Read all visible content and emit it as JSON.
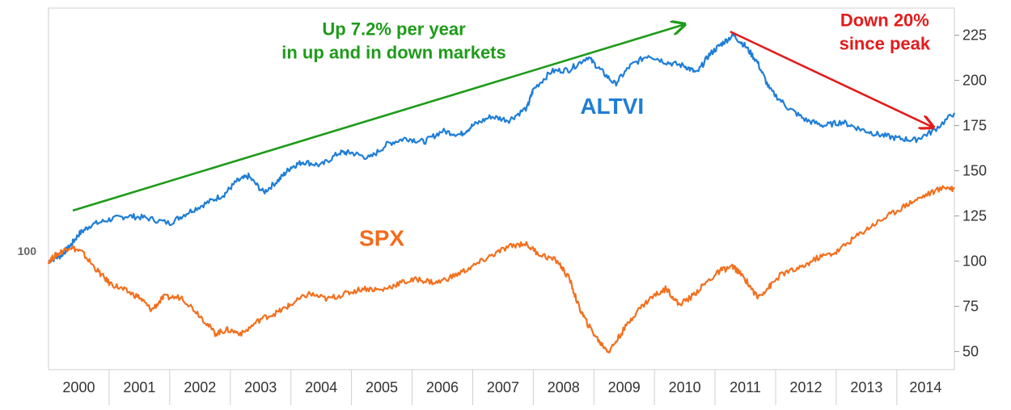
{
  "chart_data": {
    "type": "line",
    "y_axis": {
      "side": "right",
      "ticks": [
        "225",
        "200",
        "175",
        "150",
        "125",
        "100",
        "75",
        "50"
      ],
      "range": [
        40,
        240
      ]
    },
    "left_marker": {
      "label": "100",
      "value": 100
    },
    "x_axis": {
      "tick_labels": [
        "2000",
        "2001",
        "2002",
        "2003",
        "2004",
        "2005",
        "2006",
        "2007",
        "2008",
        "2009",
        "2010",
        "2011",
        "2012",
        "2013",
        "2014"
      ],
      "range": [
        2000.0,
        2014.95
      ]
    },
    "grid": {
      "horizontal": false,
      "vertical": false
    },
    "series": [
      {
        "name": "ALTVI",
        "color": "#1f7ed6",
        "label_color": "#1f7ed6",
        "points": [
          [
            2000.0,
            100
          ],
          [
            2000.2,
            103
          ],
          [
            2000.35,
            108
          ],
          [
            2000.5,
            115
          ],
          [
            2000.7,
            120
          ],
          [
            2001.0,
            123
          ],
          [
            2001.3,
            125
          ],
          [
            2001.6,
            124
          ],
          [
            2002.0,
            121
          ],
          [
            2002.3,
            127
          ],
          [
            2002.6,
            132
          ],
          [
            2002.9,
            137
          ],
          [
            2003.1,
            144
          ],
          [
            2003.3,
            147
          ],
          [
            2003.55,
            138
          ],
          [
            2003.8,
            145
          ],
          [
            2004.0,
            152
          ],
          [
            2004.2,
            155
          ],
          [
            2004.5,
            153
          ],
          [
            2004.8,
            160
          ],
          [
            2005.0,
            160
          ],
          [
            2005.3,
            157
          ],
          [
            2005.6,
            165
          ],
          [
            2005.9,
            168
          ],
          [
            2006.2,
            166
          ],
          [
            2006.5,
            172
          ],
          [
            2006.8,
            170
          ],
          [
            2007.0,
            175
          ],
          [
            2007.3,
            180
          ],
          [
            2007.6,
            178
          ],
          [
            2007.9,
            185
          ],
          [
            2008.0,
            195
          ],
          [
            2008.3,
            205
          ],
          [
            2008.6,
            206
          ],
          [
            2008.9,
            213
          ],
          [
            2009.1,
            206
          ],
          [
            2009.35,
            198
          ],
          [
            2009.6,
            208
          ],
          [
            2009.9,
            214
          ],
          [
            2010.2,
            210
          ],
          [
            2010.5,
            208
          ],
          [
            2010.7,
            204
          ],
          [
            2010.9,
            214
          ],
          [
            2011.1,
            220
          ],
          [
            2011.3,
            225
          ],
          [
            2011.5,
            219
          ],
          [
            2011.7,
            210
          ],
          [
            2011.9,
            195
          ],
          [
            2012.2,
            185
          ],
          [
            2012.5,
            178
          ],
          [
            2012.8,
            175
          ],
          [
            2013.1,
            177
          ],
          [
            2013.4,
            173
          ],
          [
            2013.7,
            170
          ],
          [
            2014.0,
            168
          ],
          [
            2014.3,
            167
          ],
          [
            2014.6,
            172
          ],
          [
            2014.95,
            182
          ]
        ]
      },
      {
        "name": "SPX",
        "color": "#f2701f",
        "label_color": "#f26b1d",
        "points": [
          [
            2000.0,
            100
          ],
          [
            2000.15,
            104
          ],
          [
            2000.35,
            108
          ],
          [
            2000.55,
            105
          ],
          [
            2000.8,
            95
          ],
          [
            2001.0,
            88
          ],
          [
            2001.25,
            84
          ],
          [
            2001.5,
            80
          ],
          [
            2001.7,
            73
          ],
          [
            2001.9,
            80
          ],
          [
            2002.2,
            80
          ],
          [
            2002.5,
            70
          ],
          [
            2002.75,
            60
          ],
          [
            2002.95,
            62
          ],
          [
            2003.2,
            60
          ],
          [
            2003.5,
            68
          ],
          [
            2003.8,
            72
          ],
          [
            2004.0,
            76
          ],
          [
            2004.3,
            82
          ],
          [
            2004.6,
            79
          ],
          [
            2004.9,
            82
          ],
          [
            2005.2,
            85
          ],
          [
            2005.5,
            84
          ],
          [
            2005.8,
            88
          ],
          [
            2006.1,
            90
          ],
          [
            2006.4,
            88
          ],
          [
            2006.7,
            92
          ],
          [
            2007.0,
            97
          ],
          [
            2007.3,
            103
          ],
          [
            2007.6,
            108
          ],
          [
            2007.85,
            110
          ],
          [
            2008.1,
            104
          ],
          [
            2008.4,
            100
          ],
          [
            2008.6,
            90
          ],
          [
            2008.75,
            75
          ],
          [
            2008.9,
            65
          ],
          [
            2009.1,
            55
          ],
          [
            2009.25,
            50
          ],
          [
            2009.45,
            60
          ],
          [
            2009.7,
            72
          ],
          [
            2009.95,
            80
          ],
          [
            2010.2,
            85
          ],
          [
            2010.4,
            76
          ],
          [
            2010.6,
            80
          ],
          [
            2010.85,
            88
          ],
          [
            2011.1,
            95
          ],
          [
            2011.3,
            97
          ],
          [
            2011.5,
            90
          ],
          [
            2011.7,
            80
          ],
          [
            2011.9,
            86
          ],
          [
            2012.1,
            93
          ],
          [
            2012.4,
            96
          ],
          [
            2012.7,
            102
          ],
          [
            2013.0,
            105
          ],
          [
            2013.3,
            113
          ],
          [
            2013.6,
            120
          ],
          [
            2013.9,
            126
          ],
          [
            2014.2,
            132
          ],
          [
            2014.5,
            137
          ],
          [
            2014.8,
            141
          ],
          [
            2014.95,
            140
          ]
        ]
      }
    ],
    "annotations": [
      {
        "name": "uptrend-note",
        "lines": [
          "Up  7.2% per year",
          "in up and in down markets"
        ],
        "color": "#1e9b1a",
        "arrow_from": [
          2000.4,
          128
        ],
        "arrow_to": [
          2010.5,
          231
        ]
      },
      {
        "name": "decline-note",
        "lines": [
          "Down 20%",
          "since peak"
        ],
        "color": "#e31b1b",
        "arrow_from": [
          2011.25,
          227
        ],
        "arrow_to": [
          2014.6,
          174
        ]
      }
    ]
  }
}
